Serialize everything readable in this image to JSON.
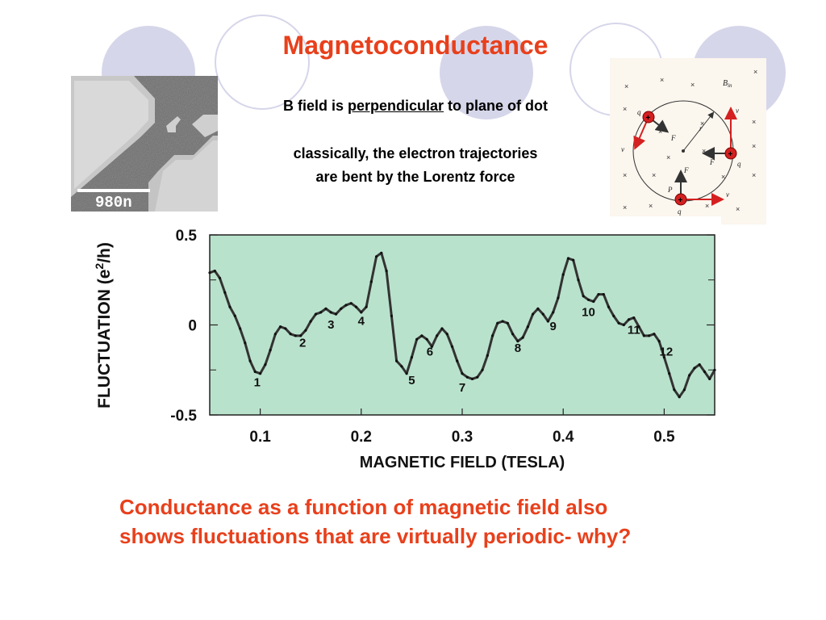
{
  "slide": {
    "title": "Magnetoconductance",
    "note1_pre": "B field is ",
    "note1_emph": "perpendicular",
    "note1_post": " to plane of dot",
    "note2_line1": "classically, the electron trajectories",
    "note2_line2": "are bent by the Lorentz force",
    "caption_line1": "Conductance as a function of magnetic field also",
    "caption_line2": "shows fluctuations that are virtually periodic- why?",
    "accent_color": "#e8401c",
    "deco_color": "#d6d6ea"
  },
  "sem_image": {
    "scale_label": "980n"
  },
  "lorentz_diagram": {
    "field_label": "B",
    "field_subscript": "in",
    "charge_symbol": "+",
    "q_label": "q",
    "v_label": "v",
    "f_label": "F",
    "r_label": "r",
    "p_label": "P",
    "field_marker": "×",
    "charge_color": "#d42020",
    "background_color": "#fbf6ee"
  },
  "chart_data": {
    "type": "line",
    "xlabel": "MAGNETIC FIELD (TESLA)",
    "ylabel_pre": "FLUCTUATION (e",
    "ylabel_sup": "2",
    "ylabel_post": "/h)",
    "xlim": [
      0.05,
      0.55
    ],
    "ylim": [
      -0.5,
      0.5
    ],
    "x_ticks": [
      0.1,
      0.2,
      0.3,
      0.4,
      0.5
    ],
    "x_tick_labels": [
      "0.1",
      "0.2",
      "0.3",
      "0.4",
      "0.5"
    ],
    "y_ticks": [
      0.5,
      0,
      -0.5
    ],
    "y_tick_labels": [
      "0.5",
      "0",
      "-0.5"
    ],
    "plot_background": "#b9e2cc",
    "line_color": "#333333",
    "series": [
      {
        "x": [
          0.05,
          0.055,
          0.06,
          0.065,
          0.07,
          0.075,
          0.08,
          0.085,
          0.09,
          0.095,
          0.1,
          0.105,
          0.11,
          0.115,
          0.12,
          0.125,
          0.13,
          0.135,
          0.14,
          0.145,
          0.15,
          0.155,
          0.16,
          0.165,
          0.17,
          0.175,
          0.18,
          0.185,
          0.19,
          0.195,
          0.2,
          0.205,
          0.21,
          0.215,
          0.22,
          0.225,
          0.23,
          0.235,
          0.24,
          0.245,
          0.25,
          0.255,
          0.26,
          0.265,
          0.27,
          0.275,
          0.28,
          0.285,
          0.29,
          0.295,
          0.3,
          0.305,
          0.31,
          0.315,
          0.32,
          0.325,
          0.33,
          0.335,
          0.34,
          0.345,
          0.35,
          0.355,
          0.36,
          0.365,
          0.37,
          0.375,
          0.38,
          0.385,
          0.39,
          0.395,
          0.4,
          0.405,
          0.41,
          0.415,
          0.42,
          0.425,
          0.43,
          0.435,
          0.44,
          0.445,
          0.45,
          0.455,
          0.46,
          0.465,
          0.47,
          0.475,
          0.48,
          0.485,
          0.49,
          0.495,
          0.5,
          0.505,
          0.51,
          0.515,
          0.52,
          0.525,
          0.53,
          0.535,
          0.54,
          0.545,
          0.55
        ],
        "values": [
          0.29,
          0.3,
          0.26,
          0.18,
          0.1,
          0.05,
          -0.02,
          -0.1,
          -0.2,
          -0.26,
          -0.27,
          -0.22,
          -0.14,
          -0.05,
          -0.01,
          -0.02,
          -0.05,
          -0.06,
          -0.06,
          -0.03,
          0.02,
          0.06,
          0.07,
          0.09,
          0.07,
          0.06,
          0.09,
          0.11,
          0.12,
          0.1,
          0.07,
          0.1,
          0.24,
          0.38,
          0.4,
          0.3,
          0.05,
          -0.2,
          -0.23,
          -0.27,
          -0.18,
          -0.08,
          -0.06,
          -0.08,
          -0.12,
          -0.06,
          -0.02,
          -0.05,
          -0.12,
          -0.2,
          -0.27,
          -0.29,
          -0.3,
          -0.29,
          -0.25,
          -0.17,
          -0.06,
          0.01,
          0.02,
          0.01,
          -0.05,
          -0.09,
          -0.07,
          -0.01,
          0.06,
          0.09,
          0.06,
          0.02,
          0.07,
          0.15,
          0.28,
          0.37,
          0.36,
          0.25,
          0.16,
          0.14,
          0.13,
          0.17,
          0.17,
          0.1,
          0.05,
          0.01,
          0.0,
          0.03,
          0.04,
          -0.01,
          -0.06,
          -0.06,
          -0.05,
          -0.09,
          -0.18,
          -0.27,
          -0.36,
          -0.4,
          -0.36,
          -0.28,
          -0.24,
          -0.22,
          -0.26,
          -0.3,
          -0.25
        ]
      }
    ],
    "annotations": [
      {
        "text": "1",
        "x": 0.097,
        "y": -0.34
      },
      {
        "text": "2",
        "x": 0.142,
        "y": -0.12
      },
      {
        "text": "3",
        "x": 0.17,
        "y": -0.02
      },
      {
        "text": "4",
        "x": 0.2,
        "y": 0.0
      },
      {
        "text": "5",
        "x": 0.25,
        "y": -0.33
      },
      {
        "text": "6",
        "x": 0.268,
        "y": -0.17
      },
      {
        "text": "7",
        "x": 0.3,
        "y": -0.37
      },
      {
        "text": "8",
        "x": 0.355,
        "y": -0.15
      },
      {
        "text": "9",
        "x": 0.39,
        "y": -0.03
      },
      {
        "text": "10",
        "x": 0.425,
        "y": 0.05
      },
      {
        "text": "11",
        "x": 0.47,
        "y": -0.05
      },
      {
        "text": "12",
        "x": 0.502,
        "y": -0.17
      }
    ]
  }
}
